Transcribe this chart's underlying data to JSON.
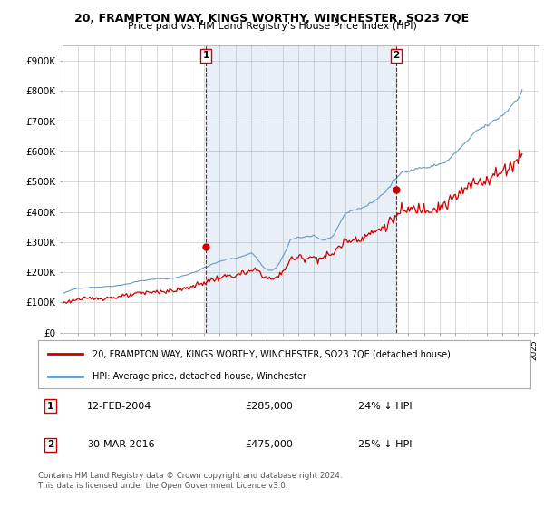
{
  "title": "20, FRAMPTON WAY, KINGS WORTHY, WINCHESTER, SO23 7QE",
  "subtitle": "Price paid vs. HM Land Registry's House Price Index (HPI)",
  "ylabel_ticks": [
    "£0",
    "£100K",
    "£200K",
    "£300K",
    "£400K",
    "£500K",
    "£600K",
    "£700K",
    "£800K",
    "£900K"
  ],
  "ytick_values": [
    0,
    100000,
    200000,
    300000,
    400000,
    500000,
    600000,
    700000,
    800000,
    900000
  ],
  "ylim": [
    0,
    950000
  ],
  "xlim_start": 1995.0,
  "xlim_end": 2025.3,
  "transaction1_x": 2004.12,
  "transaction1_y": 285000,
  "transaction2_x": 2016.25,
  "transaction2_y": 475000,
  "shade_color": "#ddeeff",
  "legend_entry1": "20, FRAMPTON WAY, KINGS WORTHY, WINCHESTER, SO23 7QE (detached house)",
  "legend_entry2": "HPI: Average price, detached house, Winchester",
  "footnote1": "Contains HM Land Registry data © Crown copyright and database right 2024.",
  "footnote2": "This data is licensed under the Open Government Licence v3.0.",
  "line_color_red": "#cc0000",
  "line_color_blue": "#6699cc",
  "background_color": "#ffffff",
  "grid_color": "#cccccc",
  "t1_note_date": "12-FEB-2004",
  "t1_note_price": "£285,000",
  "t1_note_hpi": "24% ↓ HPI",
  "t2_note_date": "30-MAR-2016",
  "t2_note_price": "£475,000",
  "t2_note_hpi": "25% ↓ HPI"
}
